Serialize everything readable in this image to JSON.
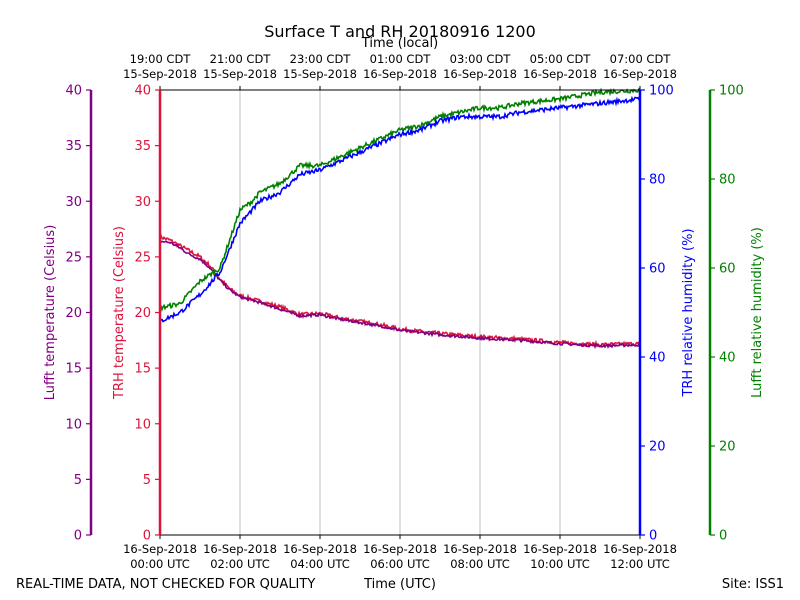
{
  "chart_data": {
    "type": "line",
    "title": "Surface T and RH 20180916 1200",
    "top_axis": {
      "label": "Time (local)",
      "ticks": [
        {
          "x": 0,
          "lines": [
            "19:00 CDT",
            "15-Sep-2018"
          ]
        },
        {
          "x": 2,
          "lines": [
            "21:00 CDT",
            "15-Sep-2018"
          ]
        },
        {
          "x": 4,
          "lines": [
            "23:00 CDT",
            "15-Sep-2018"
          ]
        },
        {
          "x": 6,
          "lines": [
            "01:00 CDT",
            "16-Sep-2018"
          ]
        },
        {
          "x": 8,
          "lines": [
            "03:00 CDT",
            "16-Sep-2018"
          ]
        },
        {
          "x": 10,
          "lines": [
            "05:00 CDT",
            "16-Sep-2018"
          ]
        },
        {
          "x": 12,
          "lines": [
            "07:00 CDT",
            "16-Sep-2018"
          ]
        }
      ]
    },
    "bottom_axis": {
      "label": "Time (UTC)",
      "range": [
        0,
        12
      ],
      "ticks": [
        {
          "x": 0,
          "lines": [
            "16-Sep-2018",
            "00:00 UTC"
          ]
        },
        {
          "x": 2,
          "lines": [
            "16-Sep-2018",
            "02:00 UTC"
          ]
        },
        {
          "x": 4,
          "lines": [
            "16-Sep-2018",
            "04:00 UTC"
          ]
        },
        {
          "x": 6,
          "lines": [
            "16-Sep-2018",
            "06:00 UTC"
          ]
        },
        {
          "x": 8,
          "lines": [
            "16-Sep-2018",
            "08:00 UTC"
          ]
        },
        {
          "x": 10,
          "lines": [
            "16-Sep-2018",
            "10:00 UTC"
          ]
        },
        {
          "x": 12,
          "lines": [
            "16-Sep-2018",
            "12:00 UTC"
          ]
        }
      ]
    },
    "y_axes": [
      {
        "id": "lufft_temp",
        "label": "Lufft temperature (Celsius)",
        "color": "#800080",
        "range": [
          0,
          40
        ],
        "ticks": [
          "0",
          "5",
          "10",
          "15",
          "20",
          "25",
          "30",
          "35",
          "40"
        ]
      },
      {
        "id": "trh_temp",
        "label": "TRH temperature (Celsius)",
        "color": "#dc143c",
        "range": [
          0,
          40
        ],
        "ticks": [
          "0",
          "5",
          "10",
          "15",
          "20",
          "25",
          "30",
          "35",
          "40"
        ]
      },
      {
        "id": "trh_rh",
        "label": "TRH relative humidity (%)",
        "color": "#0000ff",
        "range": [
          0,
          100
        ],
        "ticks": [
          "0",
          "20",
          "40",
          "60",
          "80",
          "100"
        ]
      },
      {
        "id": "lufft_rh",
        "label": "Lufft relative humidity (%)",
        "color": "#008000",
        "range": [
          0,
          100
        ],
        "ticks": [
          "0",
          "20",
          "40",
          "60",
          "80",
          "100"
        ]
      }
    ],
    "grid": "vertical",
    "series": [
      {
        "name": "TRH temperature",
        "axis": "trh_temp",
        "color": "#dc143c",
        "noise": 0.18,
        "x": [
          0,
          0.25,
          0.5,
          0.75,
          1.0,
          1.25,
          1.5,
          1.75,
          2.0,
          2.5,
          3.0,
          3.5,
          4.0,
          4.5,
          5.0,
          5.5,
          6.0,
          7.0,
          8.0,
          9.0,
          10.0,
          11.0,
          12.0
        ],
        "y": [
          26.8,
          26.5,
          26.0,
          25.5,
          25.0,
          24.2,
          23.0,
          22.1,
          21.5,
          21.0,
          20.5,
          19.8,
          19.9,
          19.5,
          19.2,
          18.9,
          18.5,
          18.1,
          17.8,
          17.6,
          17.3,
          17.1,
          17.2
        ]
      },
      {
        "name": "Lufft temperature",
        "axis": "lufft_temp",
        "color": "#800080",
        "noise": 0.12,
        "x": [
          0,
          0.25,
          0.5,
          0.75,
          1.0,
          1.25,
          1.5,
          1.75,
          2.0,
          2.5,
          3.0,
          3.5,
          4.0,
          4.5,
          5.0,
          5.5,
          6.0,
          7.0,
          8.0,
          9.0,
          10.0,
          11.0,
          12.0
        ],
        "y": [
          26.4,
          26.3,
          25.8,
          25.2,
          24.8,
          24.0,
          22.9,
          22.0,
          21.4,
          20.9,
          20.3,
          19.7,
          19.8,
          19.4,
          19.1,
          18.8,
          18.4,
          18.0,
          17.7,
          17.5,
          17.2,
          17.0,
          17.1
        ]
      },
      {
        "name": "Lufft relative humidity",
        "axis": "lufft_rh",
        "color": "#008000",
        "noise": 0.5,
        "x": [
          0,
          0.5,
          1.0,
          1.5,
          2.0,
          2.3,
          2.5,
          3.0,
          3.5,
          4.0,
          4.5,
          5.0,
          5.5,
          6.0,
          6.5,
          7.0,
          7.5,
          8.0,
          8.5,
          9.0,
          10.0,
          11.0,
          12.0
        ],
        "y": [
          51,
          52,
          57,
          60,
          73,
          75,
          77,
          79,
          83,
          83,
          85,
          87,
          89,
          91,
          92,
          94,
          95,
          96,
          96,
          97,
          98,
          99.5,
          100
        ]
      },
      {
        "name": "TRH relative humidity",
        "axis": "trh_rh",
        "color": "#0000ff",
        "noise": 0.5,
        "x": [
          0,
          0.5,
          1.0,
          1.5,
          2.0,
          2.3,
          2.5,
          3.0,
          3.5,
          4.0,
          4.5,
          5.0,
          5.5,
          6.0,
          6.5,
          7.0,
          7.5,
          8.0,
          8.5,
          9.0,
          10.0,
          11.0,
          12.0
        ],
        "y": [
          48,
          50,
          54,
          59,
          70,
          73,
          75,
          77,
          81,
          82,
          84,
          86,
          88,
          90,
          91,
          93,
          94,
          94,
          94,
          95,
          96,
          97,
          98
        ]
      }
    ]
  },
  "footer": {
    "disclaimer": "REAL-TIME DATA, NOT CHECKED FOR QUALITY",
    "site": "Site: ISS1"
  }
}
